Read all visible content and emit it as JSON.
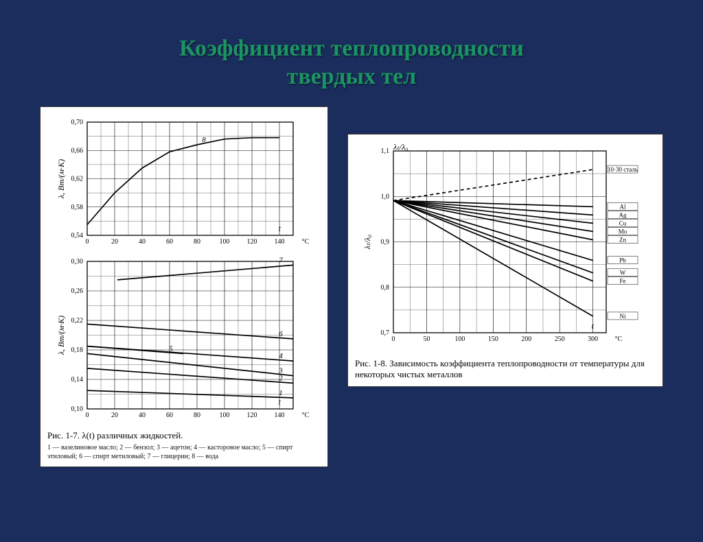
{
  "title_line1": "Коэффициент теплопроводности",
  "title_line2": "твердых тел",
  "left_figure": {
    "top_chart": {
      "y_label": "λ, Вт/(м·К)",
      "x_label": "t",
      "x_unit": "°C",
      "x_ticks": [
        0,
        20,
        40,
        60,
        80,
        100,
        120,
        140
      ],
      "y_ticks": [
        "0,54",
        "0,58",
        "0,62",
        "0,66",
        "0,70"
      ],
      "xlim": [
        0,
        150
      ],
      "ylim": [
        0.54,
        0.7
      ],
      "series": [
        {
          "label": "8",
          "points": [
            [
              0,
              0.555
            ],
            [
              20,
              0.6
            ],
            [
              40,
              0.635
            ],
            [
              60,
              0.658
            ],
            [
              80,
              0.668
            ],
            [
              100,
              0.676
            ],
            [
              120,
              0.678
            ],
            [
              140,
              0.678
            ]
          ]
        }
      ]
    },
    "bottom_chart": {
      "y_label": "λ, Вт/(м·К)",
      "x_label": "t",
      "x_unit": "°C",
      "x_ticks": [
        0,
        20,
        40,
        60,
        80,
        100,
        120,
        140
      ],
      "y_ticks": [
        "0,10",
        "0,14",
        "0,18",
        "0,22",
        "0,26",
        "0,30"
      ],
      "xlim": [
        0,
        150
      ],
      "ylim": [
        0.1,
        0.3
      ],
      "series": [
        {
          "label": "1",
          "points": [
            [
              0,
              0.125
            ],
            [
              150,
              0.115
            ]
          ]
        },
        {
          "label": "2",
          "points": [
            [
              0,
              0.155
            ],
            [
              150,
              0.135
            ]
          ]
        },
        {
          "label": "3",
          "points": [
            [
              0,
              0.175
            ],
            [
              150,
              0.145
            ]
          ]
        },
        {
          "label": "4",
          "points": [
            [
              0,
              0.185
            ],
            [
              150,
              0.165
            ]
          ]
        },
        {
          "label": "5",
          "points": [
            [
              0,
              0.185
            ],
            [
              70,
              0.175
            ]
          ]
        },
        {
          "label": "6",
          "points": [
            [
              0,
              0.215
            ],
            [
              150,
              0.195
            ]
          ]
        },
        {
          "label": "7",
          "points": [
            [
              22,
              0.275
            ],
            [
              150,
              0.295
            ]
          ]
        }
      ]
    },
    "caption": "Рис. 1-7. λ(t) различных жидкостей.",
    "legend": "1 — вазелиновое масло; 2 — бензол; 3 — ацетон; 4 — касторовое масло; 5 — спирт этиловый; 6 — спирт метиловый; 7 — глицерин; 8 — вода"
  },
  "right_figure": {
    "y_label": "λₜ/λ₀",
    "x_label": "t",
    "x_unit": "°C",
    "x_ticks": [
      0,
      50,
      100,
      150,
      200,
      250,
      300
    ],
    "y_ticks": [
      "0,7",
      "0,8",
      "0,9",
      "1,0",
      "1,1"
    ],
    "xlim": [
      0,
      320
    ],
    "ylim": [
      0.68,
      1.12
    ],
    "series": [
      {
        "label": "10·30 сталь",
        "dashed": true,
        "points": [
          [
            0,
            1.0
          ],
          [
            300,
            1.075
          ]
        ]
      },
      {
        "label": "Al",
        "points": [
          [
            0,
            1.0
          ],
          [
            300,
            0.985
          ]
        ]
      },
      {
        "label": "Ag",
        "points": [
          [
            0,
            1.0
          ],
          [
            300,
            0.965
          ]
        ]
      },
      {
        "label": "Cu",
        "points": [
          [
            0,
            1.0
          ],
          [
            300,
            0.945
          ]
        ]
      },
      {
        "label": "Mo",
        "points": [
          [
            0,
            1.0
          ],
          [
            300,
            0.925
          ]
        ]
      },
      {
        "label": "Zn",
        "points": [
          [
            0,
            1.0
          ],
          [
            300,
            0.905
          ]
        ]
      },
      {
        "label": "Pb",
        "points": [
          [
            0,
            1.0
          ],
          [
            300,
            0.855
          ]
        ]
      },
      {
        "label": "W",
        "points": [
          [
            0,
            1.0
          ],
          [
            300,
            0.825
          ]
        ]
      },
      {
        "label": "Fe",
        "points": [
          [
            0,
            1.0
          ],
          [
            300,
            0.805
          ]
        ]
      },
      {
        "label": "Ni",
        "points": [
          [
            0,
            1.0
          ],
          [
            300,
            0.72
          ]
        ]
      }
    ],
    "caption": "Рис. 1-8. Зависимость коэффициента теплопроводности от температуры для некоторых чистых металлов"
  }
}
